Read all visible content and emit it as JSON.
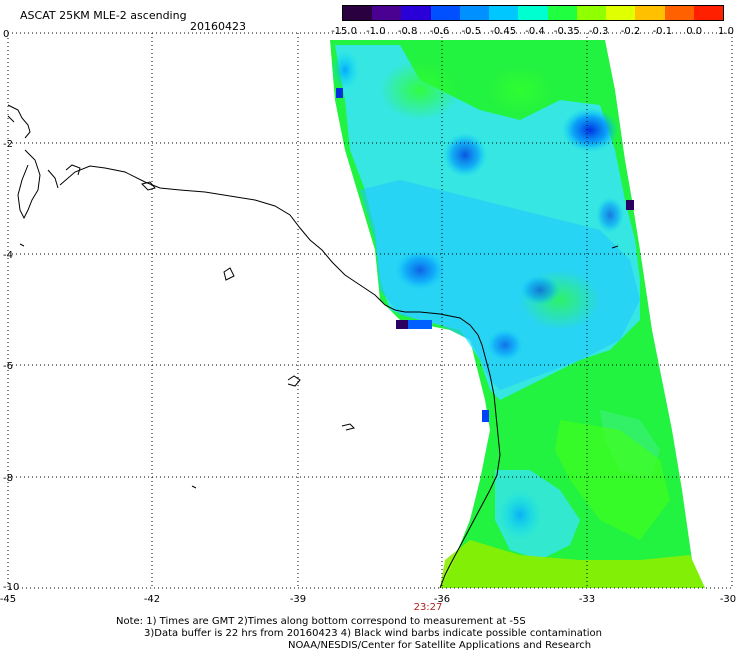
{
  "header": {
    "title": "ASCAT 25KM MLE-2 ascending",
    "date": "20160423"
  },
  "colorbar": {
    "labels": [
      "-15.0",
      "-1.0",
      "-0.8",
      "-0.6",
      "-0.5",
      "-0.45",
      "-0.4",
      "-0.35",
      "-0.3",
      "-0.2",
      "-0.1",
      "0.0",
      "1.0"
    ],
    "colors": [
      "#2a0040",
      "#4a0090",
      "#2a00d8",
      "#0050ff",
      "#0090ff",
      "#00c8ff",
      "#00ffd0",
      "#20ff40",
      "#90ff00",
      "#e0ff00",
      "#ffc000",
      "#ff6000",
      "#ff2000"
    ]
  },
  "axes": {
    "x_ticks": [
      "-45",
      "-42",
      "-39",
      "-36",
      "-33",
      "-30"
    ],
    "y_ticks": [
      "0",
      "-2",
      "-4",
      "-6",
      "-8",
      "-10"
    ]
  },
  "time_label": "23:27",
  "notes": {
    "line1": "Note: 1) Times are GMT 2)Times along bottom correspond to measurement at -5S",
    "line2": "3)Data buffer is 22 hrs from 20160423 4) Black wind barbs indicate possible contamination",
    "line3": "NOAA/NESDIS/Center for Satellite Applications and Research"
  }
}
